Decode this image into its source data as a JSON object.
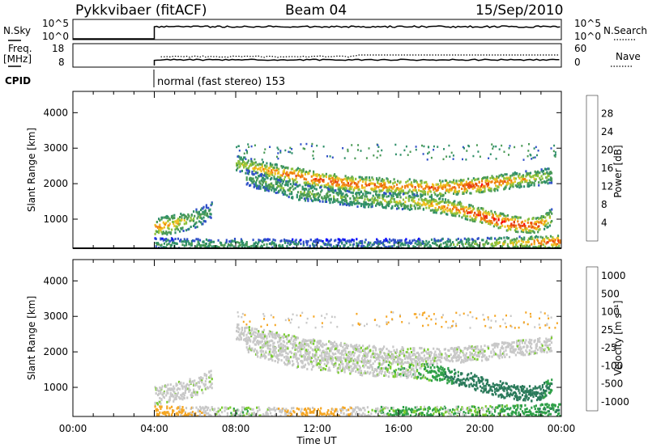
{
  "header": {
    "station": "Pykkvibaer (fitACF)",
    "beam": "Beam 04",
    "date": "15/Sep/2010"
  },
  "status_panel": {
    "nsky_label": "N.Sky",
    "nsearch_label": "N.Search",
    "noise_ticks": [
      "10^5",
      "10^0"
    ],
    "freq_label": "Freq.",
    "freq_unit": "[MHz]",
    "freq_ticks": [
      "18",
      "8"
    ],
    "nave_label": "Nave",
    "nave_ticks": [
      "60",
      "0"
    ],
    "cpid_label": "CPID",
    "cpid_text": "normal (fast stereo) 153"
  },
  "colors": {
    "power_scale": [
      "#0000ff",
      "#3050c8",
      "#2f8f6a",
      "#4a9a55",
      "#8fc23a",
      "#f0c020",
      "#f08010",
      "#e84010",
      "#ff0000"
    ],
    "velocity_scale": [
      "#1e3fbf",
      "#2a7a5a",
      "#2fa048",
      "#7acc30",
      "#c8c8c8",
      "#c8c8c8",
      "#f5a623",
      "#f07a10",
      "#ff0000"
    ]
  },
  "chart_data": [
    {
      "type": "heatmap",
      "title": "",
      "xlabel": "",
      "ylabel": "Slant Range [km]",
      "x_ticks": [
        "00:00",
        "04:00",
        "08:00",
        "12:00",
        "16:00",
        "20:00",
        "00:00"
      ],
      "y_ticks": [
        1000,
        2000,
        3000,
        4000
      ],
      "xlim": [
        0,
        24
      ],
      "ylim": [
        180,
        4600
      ],
      "colorbar": {
        "label": "Power [dB]",
        "ticks": [
          "28",
          "24",
          "20",
          "16",
          "12",
          "8",
          "4"
        ],
        "range": [
          0,
          30
        ]
      },
      "data_start_hour": 4,
      "bands": [
        {
          "name": "main",
          "x": [
            8.0,
            10.0,
            12.0,
            14.0,
            16.0,
            18.0,
            20.0,
            22.0,
            23.5
          ],
          "y": [
            2600,
            2350,
            2150,
            2000,
            1950,
            1900,
            2000,
            2150,
            2250
          ],
          "values": [
            16,
            22,
            26,
            24,
            22,
            24,
            26,
            20,
            14
          ]
        },
        {
          "name": "lower",
          "x": [
            8.5,
            11.0,
            14.0,
            17.0,
            19.0,
            20.5,
            21.5,
            22.8,
            23.5
          ],
          "y": [
            2200,
            1800,
            1600,
            1500,
            1300,
            1050,
            900,
            850,
            1100
          ],
          "values": [
            12,
            14,
            14,
            18,
            24,
            28,
            28,
            26,
            18
          ]
        },
        {
          "name": "early",
          "x": [
            4.0,
            5.0,
            6.0,
            6.8
          ],
          "y": [
            800,
            900,
            1050,
            1250
          ],
          "values": [
            22,
            20,
            14,
            10
          ]
        },
        {
          "name": "near",
          "x": [
            4.0,
            8.0,
            12.0,
            16.0,
            20.0,
            23.9
          ],
          "y": [
            320,
            300,
            290,
            300,
            320,
            400
          ],
          "values": [
            10,
            12,
            8,
            8,
            14,
            26
          ]
        }
      ]
    },
    {
      "type": "heatmap",
      "title": "",
      "xlabel": "Time UT",
      "ylabel": "Slant Range [km]",
      "x_ticks": [
        "00:00",
        "04:00",
        "08:00",
        "12:00",
        "16:00",
        "20:00",
        "00:00"
      ],
      "y_ticks": [
        1000,
        2000,
        3000,
        4000
      ],
      "xlim": [
        0,
        24
      ],
      "ylim": [
        180,
        4600
      ],
      "colorbar": {
        "label": "Velocity [m s⁻¹]",
        "ticks": [
          "1000",
          "500",
          "100",
          "25",
          "-25",
          "-100",
          "-500",
          "-1000"
        ],
        "range": [
          -1000,
          1000
        ]
      },
      "data_start_hour": 4,
      "bands": [
        {
          "name": "main",
          "x": [
            8.0,
            10.0,
            12.0,
            14.0,
            16.0,
            18.0,
            20.0,
            22.0,
            23.5
          ],
          "y": [
            2600,
            2350,
            2150,
            2000,
            1950,
            1900,
            2000,
            2150,
            2250
          ],
          "values": [
            0,
            0,
            0,
            0,
            0,
            0,
            0,
            0,
            0
          ]
        },
        {
          "name": "lower",
          "x": [
            8.5,
            11.0,
            14.0,
            17.0,
            19.0,
            20.5,
            21.5,
            22.8,
            23.5
          ],
          "y": [
            2200,
            1800,
            1600,
            1500,
            1300,
            1050,
            900,
            850,
            1100
          ],
          "values": [
            0,
            0,
            0,
            20,
            150,
            300,
            250,
            200,
            100
          ]
        },
        {
          "name": "early",
          "x": [
            4.0,
            5.0,
            6.0,
            6.8
          ],
          "y": [
            800,
            900,
            1050,
            1250
          ],
          "values": [
            0,
            0,
            0,
            0
          ]
        },
        {
          "name": "near",
          "x": [
            4.0,
            8.0,
            12.0,
            16.0,
            20.0,
            23.9
          ],
          "y": [
            320,
            300,
            290,
            300,
            320,
            400
          ],
          "values": [
            -80,
            30,
            -60,
            40,
            20,
            120
          ]
        }
      ]
    }
  ]
}
